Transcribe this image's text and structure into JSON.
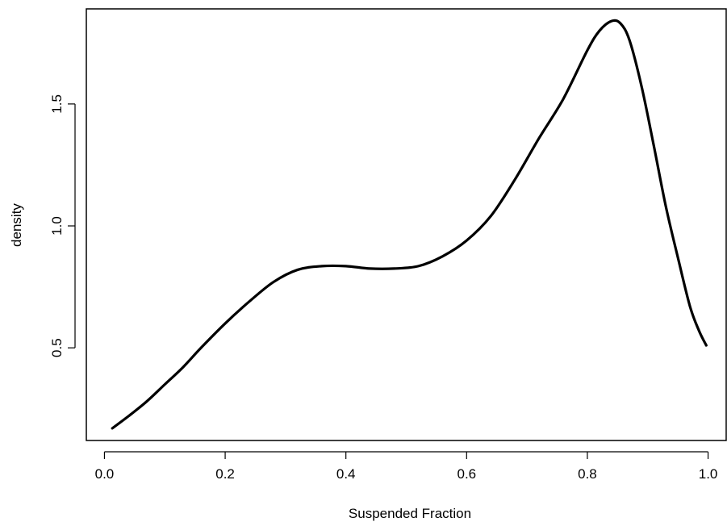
{
  "chart_data": {
    "type": "line",
    "title": "",
    "xlabel": "Suspended Fraction",
    "ylabel": "density",
    "xlim": [
      -0.03,
      1.03
    ],
    "ylim": [
      0.12,
      1.89
    ],
    "x_ticks": [
      0.0,
      0.2,
      0.4,
      0.6,
      0.8,
      1.0
    ],
    "x_tick_labels": [
      "0.0",
      "0.2",
      "0.4",
      "0.6",
      "0.8",
      "1.0"
    ],
    "y_ticks": [
      0.5,
      1.0,
      1.5
    ],
    "y_tick_labels": [
      "0.5",
      "1.0",
      "1.5"
    ],
    "grid": false,
    "series": [
      {
        "color": "#000000",
        "x": [
          0.013,
          0.04,
          0.07,
          0.1,
          0.13,
          0.16,
          0.2,
          0.24,
          0.28,
          0.32,
          0.36,
          0.4,
          0.44,
          0.48,
          0.52,
          0.56,
          0.6,
          0.64,
          0.68,
          0.72,
          0.76,
          0.8,
          0.82,
          0.84,
          0.855,
          0.87,
          0.89,
          0.91,
          0.93,
          0.95,
          0.97,
          0.985,
          0.997
        ],
        "y": [
          0.17,
          0.22,
          0.28,
          0.35,
          0.42,
          0.5,
          0.6,
          0.69,
          0.77,
          0.82,
          0.835,
          0.835,
          0.825,
          0.825,
          0.835,
          0.875,
          0.94,
          1.04,
          1.19,
          1.36,
          1.52,
          1.72,
          1.8,
          1.84,
          1.83,
          1.76,
          1.57,
          1.33,
          1.08,
          0.87,
          0.67,
          0.57,
          0.51
        ]
      }
    ]
  }
}
